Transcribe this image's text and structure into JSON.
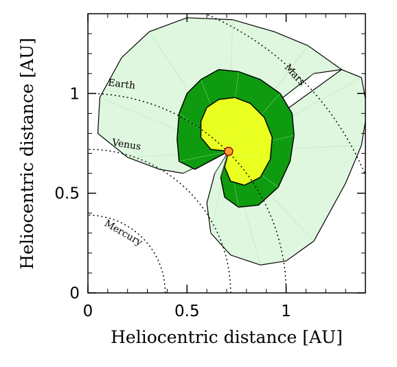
{
  "chart_data": {
    "type": "area",
    "xlabel": "Heliocentric distance [AU]",
    "ylabel": "Heliocentric distance [AU]",
    "xlim": [
      0,
      1.4
    ],
    "ylim": [
      0,
      1.4
    ],
    "xticks": [
      "0",
      "0.5",
      "1"
    ],
    "yticks": [
      "0",
      "0.5",
      "1"
    ],
    "grid": false,
    "orbits": [
      {
        "name": "Mercury",
        "radius": 0.39,
        "label": "Mercury"
      },
      {
        "name": "Venus",
        "radius": 0.72,
        "label": "Venus"
      },
      {
        "name": "Earth",
        "radius": 1.0,
        "label": "Earth"
      },
      {
        "name": "Mars",
        "radius": 1.52,
        "label": "Mars"
      }
    ],
    "regions": [
      {
        "name": "outer",
        "fill": "#dff7df",
        "stroke": "#000000",
        "points": [
          [
            0.71,
            0.71
          ],
          [
            0.88,
            0.9
          ],
          [
            1.14,
            1.1
          ],
          [
            1.28,
            1.12
          ],
          [
            1.38,
            1.08
          ],
          [
            1.41,
            0.92
          ],
          [
            1.38,
            0.74
          ],
          [
            1.3,
            0.55
          ],
          [
            1.14,
            0.26
          ],
          [
            1.0,
            0.16
          ],
          [
            0.87,
            0.14
          ],
          [
            0.72,
            0.19
          ],
          [
            0.62,
            0.3
          ],
          [
            0.6,
            0.45
          ],
          [
            0.64,
            0.6
          ],
          [
            0.71,
            0.71
          ],
          [
            0.48,
            0.6
          ],
          [
            0.36,
            0.62
          ],
          [
            0.2,
            0.68
          ],
          [
            0.05,
            0.8
          ],
          [
            0.06,
            0.98
          ],
          [
            0.17,
            1.18
          ],
          [
            0.31,
            1.31
          ],
          [
            0.5,
            1.38
          ],
          [
            0.73,
            1.37
          ],
          [
            0.94,
            1.31
          ],
          [
            1.11,
            1.24
          ],
          [
            1.28,
            1.12
          ]
        ]
      },
      {
        "name": "middle",
        "fill": "#0f9b0f",
        "stroke": "#000000",
        "points": [
          [
            0.71,
            0.71
          ],
          [
            0.54,
            0.62
          ],
          [
            0.46,
            0.66
          ],
          [
            0.45,
            0.77
          ],
          [
            0.46,
            0.9
          ],
          [
            0.5,
            1.0
          ],
          [
            0.57,
            1.07
          ],
          [
            0.66,
            1.12
          ],
          [
            0.76,
            1.11
          ],
          [
            0.87,
            1.07
          ],
          [
            0.97,
            1.0
          ],
          [
            1.03,
            0.9
          ],
          [
            1.04,
            0.79
          ],
          [
            1.02,
            0.66
          ],
          [
            0.96,
            0.53
          ],
          [
            0.86,
            0.44
          ],
          [
            0.76,
            0.43
          ],
          [
            0.69,
            0.48
          ],
          [
            0.67,
            0.58
          ],
          [
            0.71,
            0.71
          ]
        ]
      },
      {
        "name": "inner",
        "fill": "#e9ff1f",
        "stroke": "#000000",
        "points": [
          [
            0.71,
            0.71
          ],
          [
            0.62,
            0.72
          ],
          [
            0.57,
            0.78
          ],
          [
            0.57,
            0.86
          ],
          [
            0.6,
            0.93
          ],
          [
            0.66,
            0.97
          ],
          [
            0.74,
            0.98
          ],
          [
            0.82,
            0.95
          ],
          [
            0.89,
            0.88
          ],
          [
            0.93,
            0.78
          ],
          [
            0.92,
            0.67
          ],
          [
            0.87,
            0.58
          ],
          [
            0.79,
            0.54
          ],
          [
            0.72,
            0.56
          ],
          [
            0.69,
            0.63
          ],
          [
            0.71,
            0.71
          ]
        ]
      }
    ],
    "marker": {
      "name": "center-marker",
      "x": 0.71,
      "y": 0.71,
      "fill": "#f5a623",
      "stroke": "#b00000"
    }
  }
}
